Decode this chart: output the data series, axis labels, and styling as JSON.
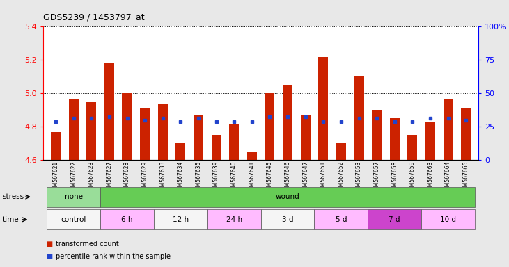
{
  "title": "GDS5239 / 1453797_at",
  "samples": [
    "GSM567621",
    "GSM567622",
    "GSM567623",
    "GSM567627",
    "GSM567628",
    "GSM567629",
    "GSM567633",
    "GSM567634",
    "GSM567635",
    "GSM567639",
    "GSM567640",
    "GSM567641",
    "GSM567645",
    "GSM567646",
    "GSM567647",
    "GSM567651",
    "GSM567652",
    "GSM567653",
    "GSM567657",
    "GSM567658",
    "GSM567659",
    "GSM567663",
    "GSM567664",
    "GSM567665"
  ],
  "red_values": [
    4.77,
    4.97,
    4.95,
    5.18,
    5.0,
    4.91,
    4.94,
    4.7,
    4.87,
    4.75,
    4.82,
    4.65,
    5.0,
    5.05,
    4.87,
    5.22,
    4.7,
    5.1,
    4.9,
    4.85,
    4.75,
    4.83,
    4.97,
    4.91
  ],
  "blue_values": [
    4.83,
    4.85,
    4.85,
    4.86,
    4.85,
    4.84,
    4.85,
    4.83,
    4.85,
    4.83,
    4.83,
    4.83,
    4.86,
    4.86,
    4.86,
    4.83,
    4.83,
    4.85,
    4.85,
    4.83,
    4.83,
    4.85,
    4.85,
    4.84
  ],
  "ylim": [
    4.6,
    5.4
  ],
  "yticks_left": [
    4.6,
    4.8,
    5.0,
    5.2,
    5.4
  ],
  "yticks_right_vals": [
    0,
    25,
    50,
    75,
    100
  ],
  "yticks_right_labels": [
    "0",
    "25",
    "50",
    "75",
    "100%"
  ],
  "stress_groups": [
    {
      "label": "none",
      "start": 0,
      "end": 3,
      "color": "#99dd99"
    },
    {
      "label": "wound",
      "start": 3,
      "end": 24,
      "color": "#66cc55"
    }
  ],
  "time_groups": [
    {
      "label": "control",
      "start": 0,
      "end": 3,
      "color": "#f5f5f5"
    },
    {
      "label": "6 h",
      "start": 3,
      "end": 6,
      "color": "#ffbbff"
    },
    {
      "label": "12 h",
      "start": 6,
      "end": 9,
      "color": "#f5f5f5"
    },
    {
      "label": "24 h",
      "start": 9,
      "end": 12,
      "color": "#ffbbff"
    },
    {
      "label": "3 d",
      "start": 12,
      "end": 15,
      "color": "#f5f5f5"
    },
    {
      "label": "5 d",
      "start": 15,
      "end": 18,
      "color": "#ffbbff"
    },
    {
      "label": "7 d",
      "start": 18,
      "end": 21,
      "color": "#cc44cc"
    },
    {
      "label": "10 d",
      "start": 21,
      "end": 24,
      "color": "#ffbbff"
    }
  ],
  "bar_color": "#cc2200",
  "blue_color": "#2244cc",
  "bg_color": "#e8e8e8",
  "plot_bg": "#ffffff",
  "bar_width": 0.55,
  "baseline": 4.6
}
